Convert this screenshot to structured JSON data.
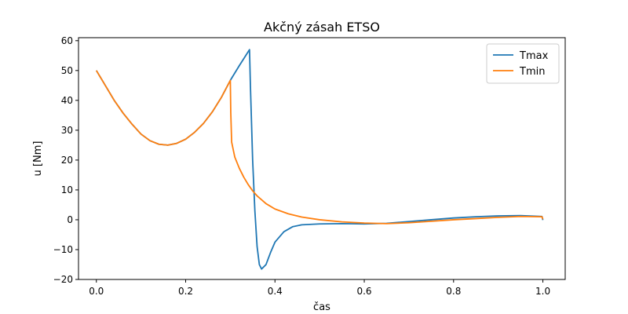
{
  "chart_data": {
    "type": "line",
    "title": "Akčný zásah ETSO",
    "xlabel": "čas",
    "ylabel": "u [Nm]",
    "xlim": [
      -0.04,
      1.05
    ],
    "ylim": [
      -20,
      61
    ],
    "xticks": [
      0.0,
      0.2,
      0.4,
      0.6,
      0.8,
      1.0
    ],
    "xtick_labels": [
      "0.0",
      "0.2",
      "0.4",
      "0.6",
      "0.8",
      "1.0"
    ],
    "yticks": [
      -20,
      -10,
      0,
      10,
      20,
      30,
      40,
      50,
      60
    ],
    "ytick_labels": [
      "−20",
      "−10",
      "0",
      "10",
      "20",
      "30",
      "40",
      "50",
      "60"
    ],
    "grid": false,
    "legend_position": "top-right",
    "series": [
      {
        "name": "Tmax",
        "color": "#1f77b4",
        "points": [
          [
            0.0,
            50
          ],
          [
            0.02,
            45
          ],
          [
            0.04,
            40
          ],
          [
            0.06,
            35.7
          ],
          [
            0.08,
            32
          ],
          [
            0.1,
            28.7
          ],
          [
            0.12,
            26.5
          ],
          [
            0.14,
            25.3
          ],
          [
            0.16,
            25
          ],
          [
            0.18,
            25.6
          ],
          [
            0.2,
            27
          ],
          [
            0.22,
            29.3
          ],
          [
            0.24,
            32.3
          ],
          [
            0.26,
            36.2
          ],
          [
            0.28,
            41
          ],
          [
            0.3,
            46.7
          ],
          [
            0.32,
            51.6
          ],
          [
            0.343,
            57
          ],
          [
            0.345,
            45
          ],
          [
            0.35,
            20
          ],
          [
            0.355,
            3
          ],
          [
            0.36,
            -9
          ],
          [
            0.365,
            -15
          ],
          [
            0.37,
            -16.5
          ],
          [
            0.38,
            -15
          ],
          [
            0.39,
            -11
          ],
          [
            0.4,
            -7.5
          ],
          [
            0.42,
            -4
          ],
          [
            0.44,
            -2.3
          ],
          [
            0.46,
            -1.7
          ],
          [
            0.5,
            -1.4
          ],
          [
            0.55,
            -1.3
          ],
          [
            0.6,
            -1.4
          ],
          [
            0.65,
            -1.2
          ],
          [
            0.7,
            -0.6
          ],
          [
            0.75,
            0
          ],
          [
            0.8,
            0.6
          ],
          [
            0.85,
            1.0
          ],
          [
            0.9,
            1.3
          ],
          [
            0.95,
            1.4
          ],
          [
            0.998,
            1.1
          ],
          [
            1.0,
            -0.1
          ]
        ]
      },
      {
        "name": "Tmin",
        "color": "#ff7f0e",
        "points": [
          [
            0.0,
            50
          ],
          [
            0.02,
            45
          ],
          [
            0.04,
            40
          ],
          [
            0.06,
            35.7
          ],
          [
            0.08,
            32
          ],
          [
            0.1,
            28.7
          ],
          [
            0.12,
            26.5
          ],
          [
            0.14,
            25.3
          ],
          [
            0.16,
            25
          ],
          [
            0.18,
            25.6
          ],
          [
            0.2,
            27
          ],
          [
            0.22,
            29.3
          ],
          [
            0.24,
            32.3
          ],
          [
            0.26,
            36.2
          ],
          [
            0.28,
            41
          ],
          [
            0.3,
            46.7
          ],
          [
            0.301,
            36
          ],
          [
            0.303,
            26
          ],
          [
            0.31,
            21
          ],
          [
            0.32,
            17.3
          ],
          [
            0.33,
            14.3
          ],
          [
            0.34,
            11.8
          ],
          [
            0.35,
            9.7
          ],
          [
            0.36,
            8
          ],
          [
            0.38,
            5.4
          ],
          [
            0.4,
            3.6
          ],
          [
            0.43,
            2
          ],
          [
            0.46,
            0.9
          ],
          [
            0.5,
            0
          ],
          [
            0.55,
            -0.7
          ],
          [
            0.6,
            -1.1
          ],
          [
            0.65,
            -1.3
          ],
          [
            0.7,
            -1.0
          ],
          [
            0.75,
            -0.5
          ],
          [
            0.8,
            0
          ],
          [
            0.85,
            0.4
          ],
          [
            0.9,
            0.8
          ],
          [
            0.95,
            1.1
          ],
          [
            0.998,
            1.0
          ],
          [
            1.0,
            0.2
          ]
        ]
      }
    ]
  }
}
